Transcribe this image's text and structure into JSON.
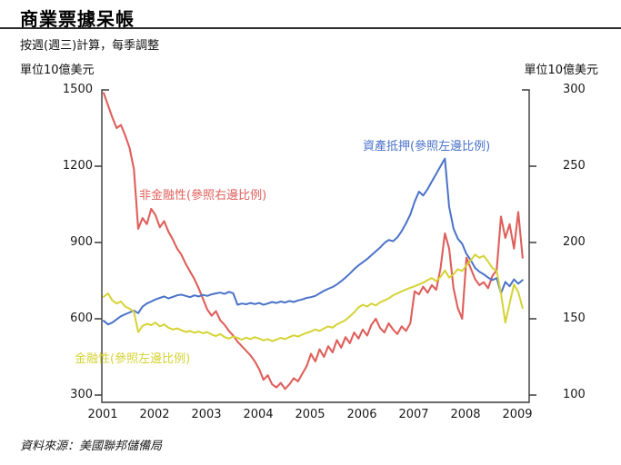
{
  "page": {
    "title": "商業票據呆帳",
    "subtitle": "按週(週三)計算，每季調整",
    "source": "資料來源：美國聯邦儲備局"
  },
  "axes": {
    "left_unit_label": "單位10億美元",
    "right_unit_label": "單位10億美元",
    "left_ticks": [
      "1500",
      "1200",
      "900",
      "600",
      "300"
    ],
    "right_ticks": [
      "300",
      "250",
      "200",
      "150",
      "100"
    ],
    "x_ticks": [
      "2001",
      "2002",
      "2003",
      "2004",
      "2005",
      "2006",
      "2007",
      "2008",
      "2009"
    ]
  },
  "colors": {
    "nonfinancial": "#df5f5b",
    "asset_backed": "#4a72c8",
    "financial": "#d5d334",
    "axis": "#3a3a3a"
  },
  "chart_data": {
    "type": "line",
    "title": "商業票據呆帳",
    "subtitle": "按週(週三)計算，每季調整",
    "x_unit": "months, Jan 2001 – Feb 2009",
    "x_range": [
      2001,
      2009.17
    ],
    "left_ylim": [
      300,
      1500
    ],
    "right_ylim": [
      100,
      300
    ],
    "grid": false,
    "series": [
      {
        "name": "非金融性(參照右邊比例)",
        "axis": "right",
        "color": "#df5f5b",
        "values": [
          298,
          290,
          282,
          275,
          277,
          270,
          262,
          248,
          209,
          216,
          212,
          222,
          218,
          210,
          214,
          207,
          202,
          196,
          192,
          186,
          181,
          176,
          170,
          163,
          156,
          152,
          155,
          149,
          146,
          142,
          139,
          135,
          132,
          129,
          126,
          122,
          117,
          110,
          113,
          107,
          105,
          108,
          104,
          107,
          111,
          109,
          114,
          119,
          127,
          122,
          130,
          125,
          132,
          128,
          136,
          131,
          138,
          134,
          141,
          137,
          143,
          139,
          146,
          150,
          144,
          141,
          147,
          143,
          140,
          145,
          142,
          147,
          168,
          166,
          171,
          167,
          172,
          169,
          183,
          206,
          196,
          170,
          157,
          150,
          190,
          183,
          176,
          172,
          174,
          170,
          178,
          182,
          217,
          203,
          212,
          196,
          220,
          190
        ]
      },
      {
        "name": "資產抵押(參照左邊比例)",
        "axis": "left",
        "color": "#4a72c8",
        "values": [
          592,
          578,
          585,
          598,
          610,
          618,
          625,
          632,
          622,
          648,
          660,
          668,
          676,
          682,
          688,
          680,
          686,
          692,
          695,
          690,
          685,
          692,
          688,
          694,
          690,
          696,
          700,
          703,
          698,
          706,
          700,
          655,
          660,
          657,
          662,
          658,
          662,
          655,
          660,
          666,
          662,
          668,
          664,
          670,
          666,
          672,
          676,
          682,
          685,
          690,
          700,
          710,
          718,
          725,
          735,
          748,
          762,
          778,
          795,
          810,
          822,
          835,
          850,
          865,
          880,
          898,
          910,
          905,
          920,
          945,
          975,
          1010,
          1060,
          1100,
          1085,
          1110,
          1140,
          1170,
          1200,
          1230,
          1040,
          955,
          915,
          895,
          855,
          830,
          800,
          785,
          775,
          762,
          752,
          760,
          700,
          745,
          728,
          755,
          738,
          752
        ]
      },
      {
        "name": "金融性(參照左邊比例)",
        "axis": "left",
        "color": "#d5d334",
        "values": [
          686,
          700,
          672,
          660,
          668,
          648,
          640,
          628,
          548,
          572,
          580,
          575,
          585,
          570,
          578,
          565,
          558,
          562,
          555,
          548,
          552,
          545,
          550,
          543,
          548,
          538,
          532,
          540,
          528,
          522,
          530,
          525,
          518,
          526,
          520,
          528,
          522,
          515,
          520,
          512,
          518,
          525,
          520,
          528,
          535,
          530,
          538,
          545,
          550,
          558,
          552,
          562,
          570,
          565,
          578,
          586,
          595,
          610,
          625,
          645,
          655,
          648,
          660,
          652,
          665,
          672,
          680,
          692,
          700,
          708,
          715,
          722,
          728,
          735,
          742,
          752,
          760,
          748,
          765,
          790,
          762,
          775,
          795,
          788,
          810,
          830,
          852,
          840,
          848,
          825,
          800,
          788,
          700,
          585,
          660,
          735,
          705,
          642
        ]
      }
    ]
  }
}
